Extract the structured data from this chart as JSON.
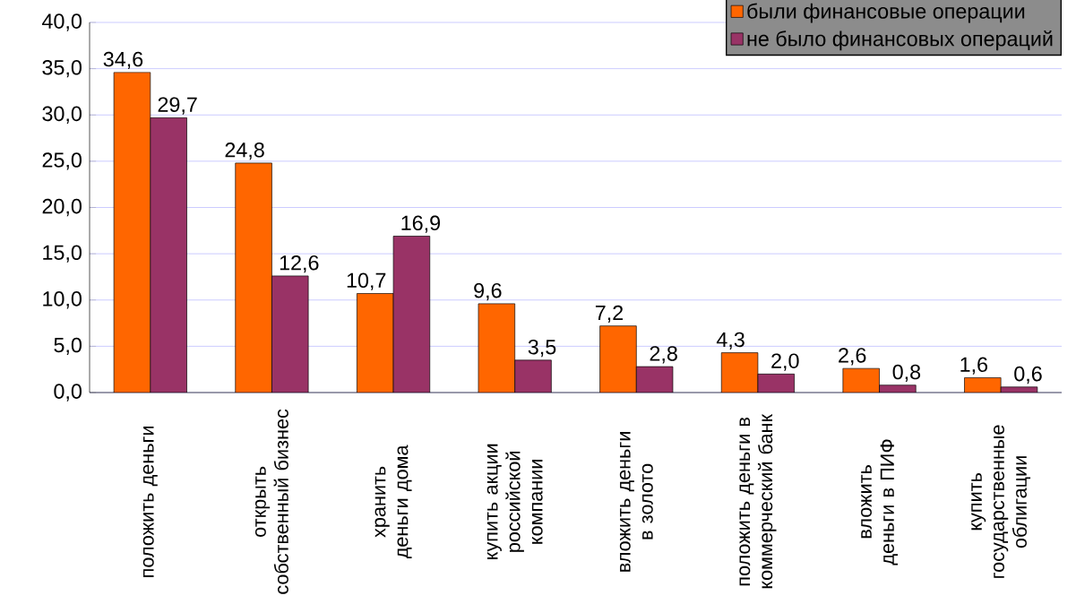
{
  "chart_data": {
    "type": "bar",
    "categories": [
      "положить деньги",
      "открыть собственный бизнес",
      "хранить деньги дома",
      "купить акции российской компании",
      "вложить деньги в золото",
      "положить деньги в коммерческий банк",
      "вложить деньги в ПИФ",
      "купить государственные облигации"
    ],
    "series": [
      {
        "name": "были финансовые операции",
        "color": "#ff6600",
        "values": [
          34.6,
          24.8,
          10.7,
          9.6,
          7.2,
          4.3,
          2.6,
          1.6
        ],
        "value_labels": [
          "34,6",
          "24,8",
          "10,7",
          "9,6",
          "7,2",
          "4,3",
          "2,6",
          "1,6"
        ]
      },
      {
        "name": "не было финансовых операций",
        "color": "#993366",
        "values": [
          29.7,
          12.6,
          16.9,
          3.5,
          2.8,
          2.0,
          0.8,
          0.6
        ],
        "value_labels": [
          "29,7",
          "12,6",
          "16,9",
          "3,5",
          "2,8",
          "2,0",
          "0,8",
          "0,6"
        ]
      }
    ],
    "ylim": [
      0,
      40
    ],
    "yticks": [
      {
        "value": 0,
        "label": "0,0"
      },
      {
        "value": 5,
        "label": "5,0"
      },
      {
        "value": 10,
        "label": "10,0"
      },
      {
        "value": 15,
        "label": "15,0"
      },
      {
        "value": 20,
        "label": "20,0"
      },
      {
        "value": 25,
        "label": "25,0"
      },
      {
        "value": 30,
        "label": "30,0"
      },
      {
        "value": 35,
        "label": "35,0"
      },
      {
        "value": 40,
        "label": "40,0"
      }
    ],
    "grid": "y",
    "legend": "top right"
  }
}
